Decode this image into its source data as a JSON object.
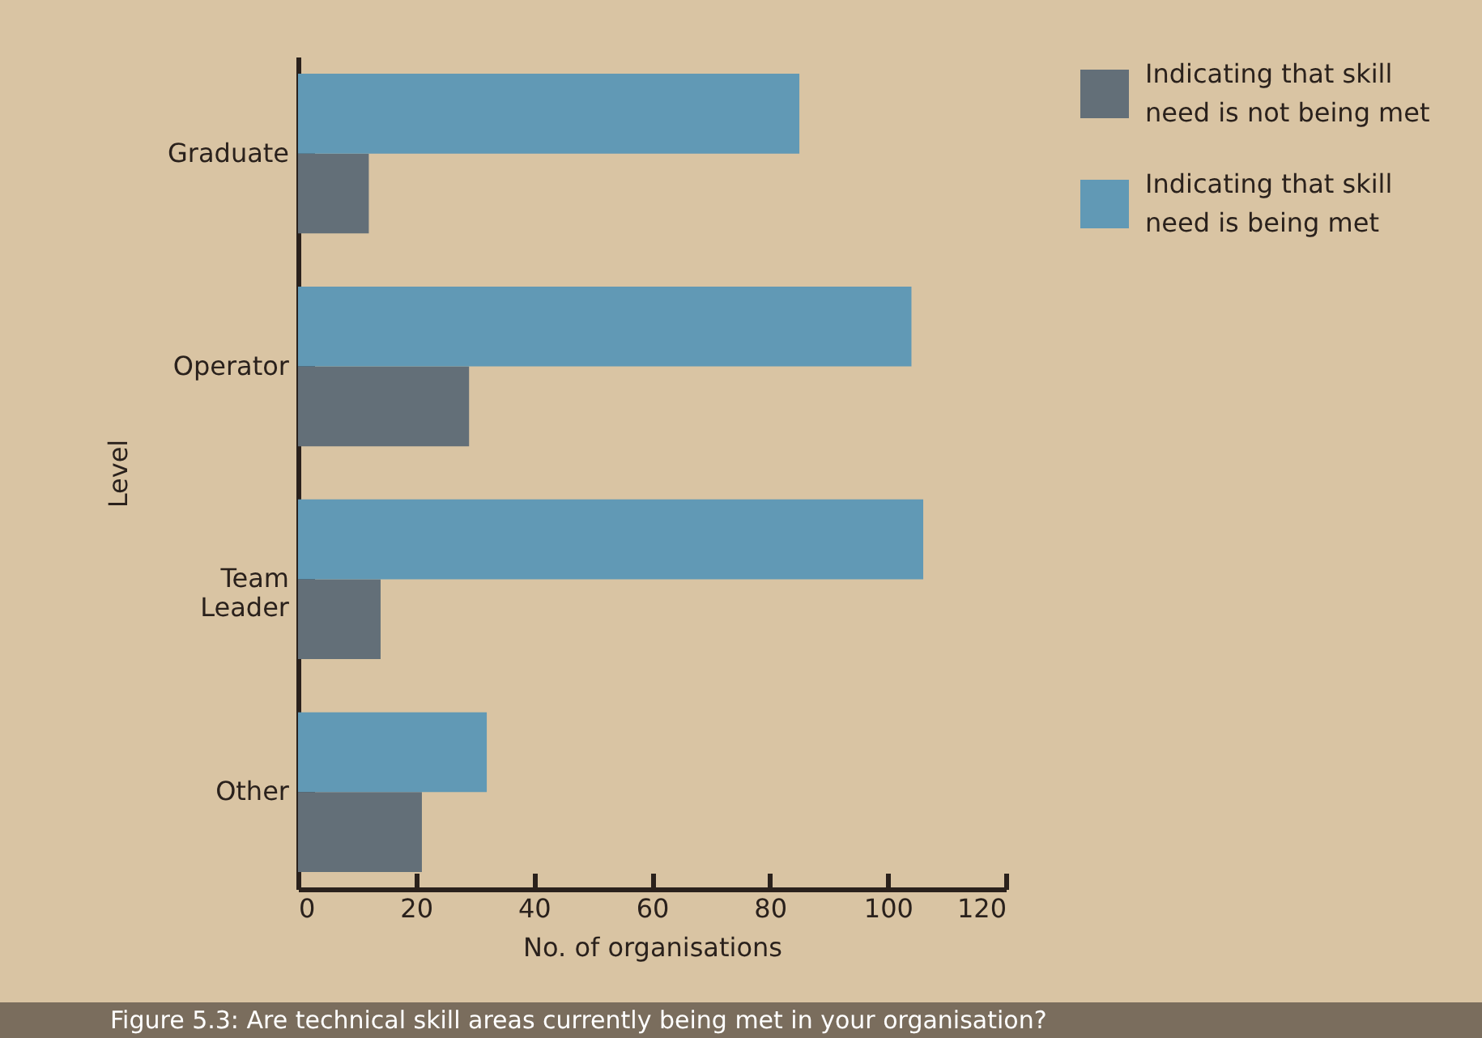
{
  "chart_data": {
    "type": "bar",
    "orientation": "horizontal",
    "ylabel": "Level",
    "xlabel": "No. of organisations",
    "categories": [
      "Graduate",
      "Operator",
      "Team Leader",
      "Other"
    ],
    "series": [
      {
        "name": "Indicating that skill need is not being met",
        "color": "#636f78",
        "values": [
          12,
          29,
          14,
          21
        ]
      },
      {
        "name": "Indicating that skill need is being met",
        "color": "#6199b5",
        "values": [
          85,
          104,
          106,
          32
        ]
      }
    ],
    "xlim": [
      0,
      120
    ],
    "xticks": [
      0,
      20,
      40,
      60,
      80,
      100,
      120
    ],
    "grid": false,
    "legend": "top right",
    "annotations": [
      "Figure 5.3: Are technical skill areas currently being met in your organisation?"
    ]
  }
}
